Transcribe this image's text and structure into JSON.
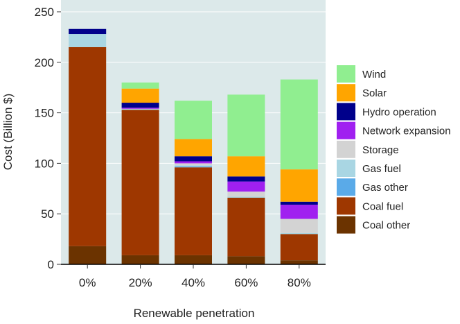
{
  "chart_data": {
    "type": "bar",
    "stacked": true,
    "categories": [
      "0%",
      "20%",
      "40%",
      "60%",
      "80%"
    ],
    "xlabel": "Renewable penetration",
    "ylabel": "Cost (Billion $)",
    "ylim": [
      0,
      250
    ],
    "yticks": [
      0,
      50,
      100,
      150,
      200,
      250
    ],
    "grid": true,
    "legend_position": "right",
    "series": [
      {
        "name": "Coal other",
        "color": "#6b3300",
        "values": [
          18,
          9,
          9,
          8,
          4
        ]
      },
      {
        "name": "Coal fuel",
        "color": "#9e3700",
        "values": [
          197,
          144,
          87,
          58,
          26
        ]
      },
      {
        "name": "Gas other",
        "color": "#5aaae8",
        "values": [
          0,
          0,
          1,
          0,
          0
        ]
      },
      {
        "name": "Gas fuel",
        "color": "#a9d6e3",
        "values": [
          13,
          1,
          1,
          1,
          1
        ]
      },
      {
        "name": "Storage",
        "color": "#d3d3d3",
        "values": [
          0,
          0,
          2,
          5,
          14
        ]
      },
      {
        "name": "Network expansion",
        "color": "#a020f0",
        "values": [
          0,
          1,
          2,
          10,
          14
        ]
      },
      {
        "name": "Hydro operation",
        "color": "#00008b",
        "values": [
          5,
          5,
          5,
          5,
          3
        ]
      },
      {
        "name": "Solar",
        "color": "#ffa500",
        "values": [
          0,
          14,
          17,
          20,
          32
        ]
      },
      {
        "name": "Wind",
        "color": "#90ee90",
        "values": [
          0,
          6,
          38,
          61,
          89
        ]
      }
    ],
    "legend_order": [
      "Wind",
      "Solar",
      "Hydro operation",
      "Network expansion",
      "Storage",
      "Gas fuel",
      "Gas other",
      "Coal fuel",
      "Coal other"
    ]
  }
}
